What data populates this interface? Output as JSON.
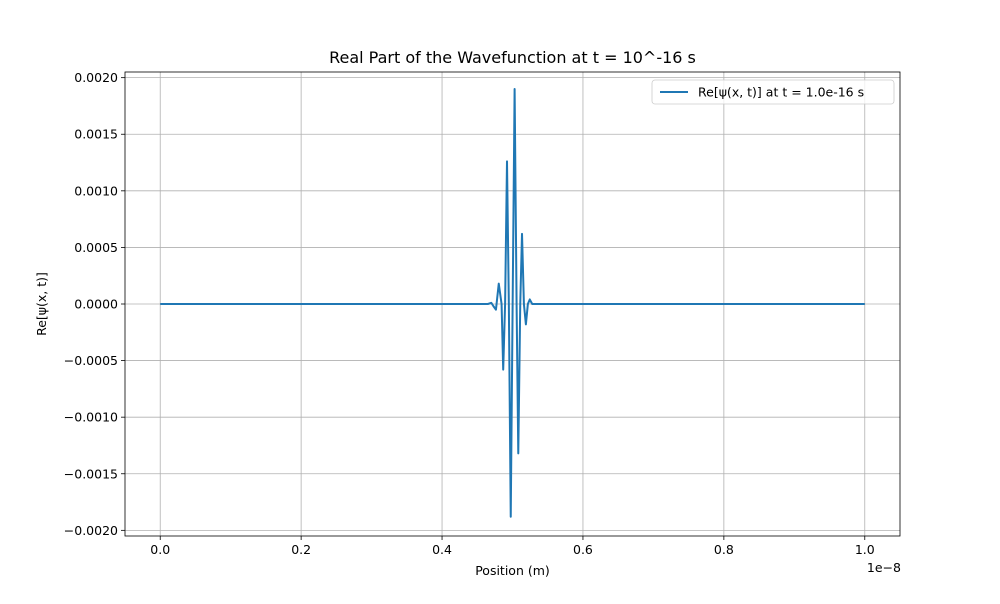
{
  "chart_data": {
    "type": "line",
    "title": "Real Part of the Wavefunction at t = 10^-16 s",
    "xlabel": "Position (m)",
    "ylabel": "Re[ψ(x, t)]",
    "x_offset_label": "1e−8",
    "xlim": [
      -0.05,
      1.05
    ],
    "ylim": [
      -0.00205,
      0.00205
    ],
    "x_unit_scale": 1e-08,
    "x_ticks": [
      0.0,
      0.2,
      0.4,
      0.6,
      0.8,
      1.0
    ],
    "x_tick_labels": [
      "0.0",
      "0.2",
      "0.4",
      "0.6",
      "0.8",
      "1.0"
    ],
    "y_ticks": [
      0.002,
      0.0015,
      0.001,
      0.0005,
      0.0,
      -0.0005,
      -0.001,
      -0.0015,
      -0.002
    ],
    "y_tick_labels": [
      "0.0020",
      "0.0015",
      "0.0010",
      "0.0005",
      "0.0000",
      "−0.0005",
      "−0.0010",
      "−0.0015",
      "−0.0020"
    ],
    "grid": true,
    "legend_position": "top-right",
    "series": [
      {
        "name": "Re[ψ(x, t)] at t = 1.0e-16 s",
        "color": "#1f77b4",
        "points": [
          [
            0.0,
            0.0
          ],
          [
            0.45,
            0.0
          ],
          [
            0.465,
            0.0
          ],
          [
            0.47,
            1e-05
          ],
          [
            0.473,
            -2e-05
          ],
          [
            0.4765,
            -5e-05
          ],
          [
            0.4805,
            0.00018
          ],
          [
            0.4845,
            0.0
          ],
          [
            0.4868,
            -0.00058
          ],
          [
            0.4895,
            0.0
          ],
          [
            0.4922,
            0.00126
          ],
          [
            0.4948,
            0.0
          ],
          [
            0.4975,
            -0.00188
          ],
          [
            0.5002,
            0.0
          ],
          [
            0.503,
            0.0019
          ],
          [
            0.5058,
            0.0
          ],
          [
            0.5082,
            -0.00132
          ],
          [
            0.511,
            0.0
          ],
          [
            0.5135,
            0.00062
          ],
          [
            0.5162,
            0.0
          ],
          [
            0.519,
            -0.00018
          ],
          [
            0.5218,
            0.0
          ],
          [
            0.5245,
            4e-05
          ],
          [
            0.528,
            0.0
          ],
          [
            0.54,
            0.0
          ],
          [
            1.0,
            0.0
          ]
        ]
      }
    ]
  }
}
